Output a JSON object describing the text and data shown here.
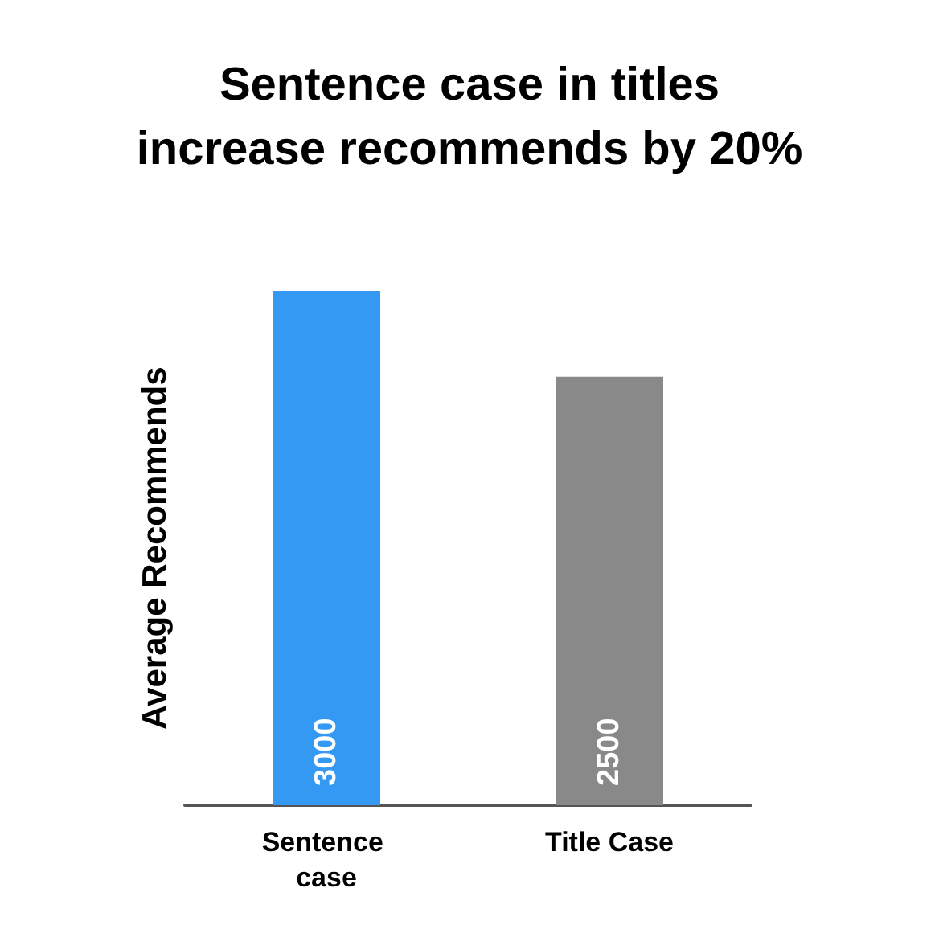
{
  "chart_data": {
    "type": "bar",
    "title": "Sentence case in titles\nincrease recommends by 20%",
    "ylabel": "Average Recommends",
    "categories": [
      "Sentence case",
      "Title Case"
    ],
    "values": [
      3000,
      2500
    ],
    "colors": [
      "#3399f3",
      "#898989"
    ],
    "data_labels": true,
    "grid": false
  }
}
